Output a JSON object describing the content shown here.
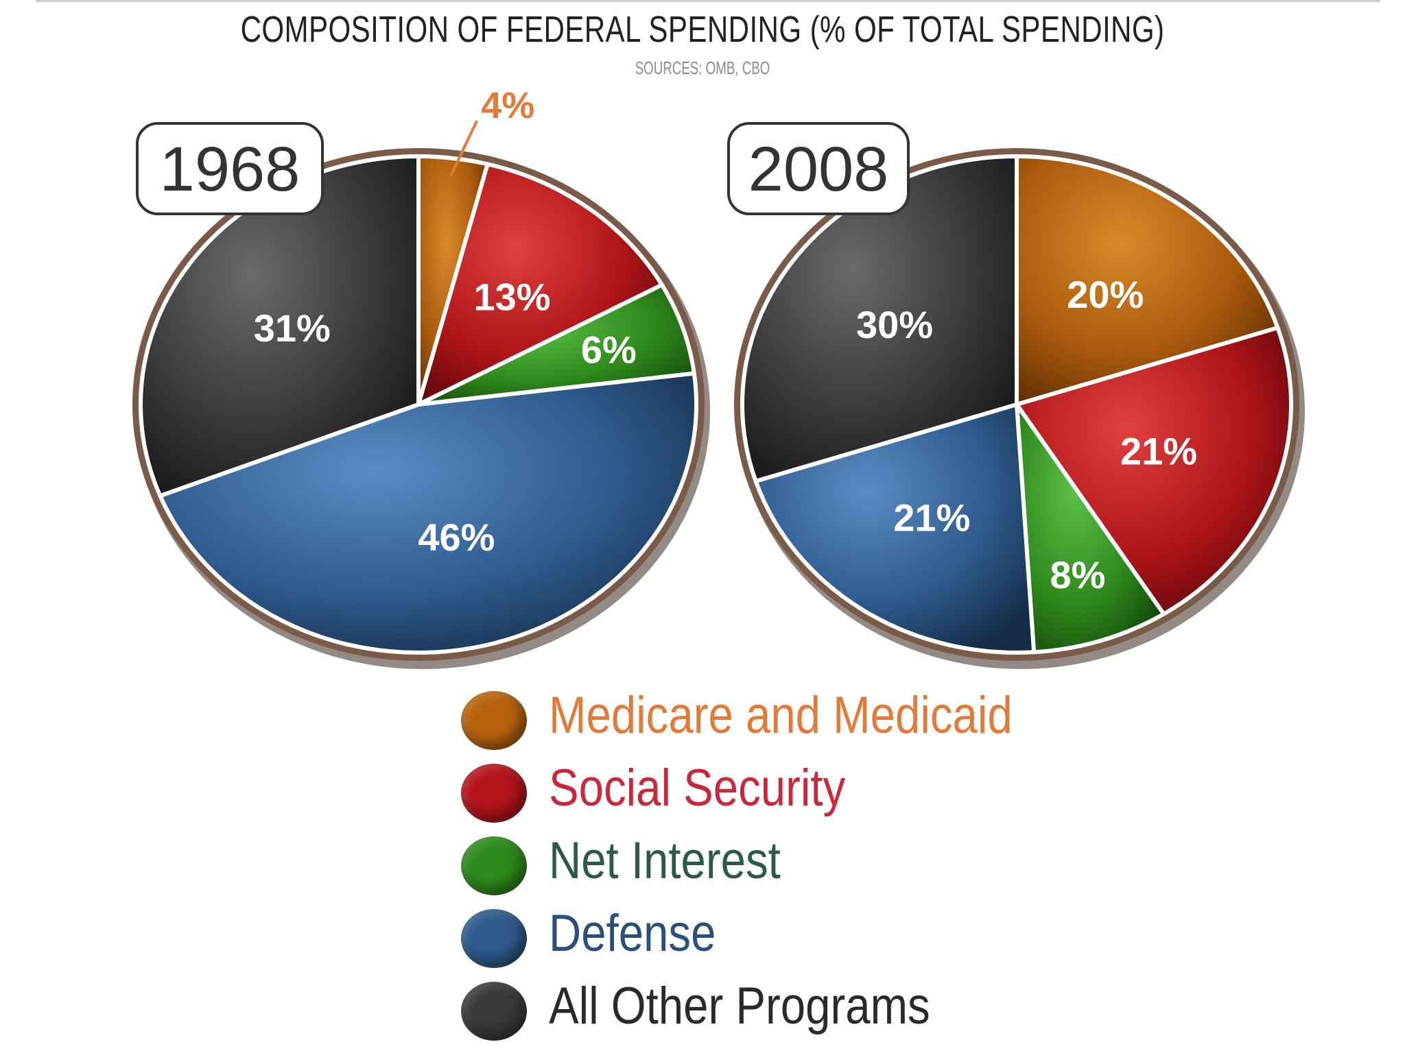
{
  "chart_data": [
    {
      "type": "pie",
      "year_label": "1968",
      "slices": [
        {
          "category": "Medicare and Medicaid",
          "value": 4,
          "label": "4%"
        },
        {
          "category": "Social Security",
          "value": 13,
          "label": "13%"
        },
        {
          "category": "Net Interest",
          "value": 6,
          "label": "6%"
        },
        {
          "category": "Defense",
          "value": 46,
          "label": "46%"
        },
        {
          "category": "All Other Programs",
          "value": 31,
          "label": "31%"
        }
      ]
    },
    {
      "type": "pie",
      "year_label": "2008",
      "slices": [
        {
          "category": "Medicare and Medicaid",
          "value": 20,
          "label": "20%"
        },
        {
          "category": "Social Security",
          "value": 21,
          "label": "21%"
        },
        {
          "category": "Net Interest",
          "value": 8,
          "label": "8%"
        },
        {
          "category": "Defense",
          "value": 21,
          "label": "21%"
        },
        {
          "category": "All Other Programs",
          "value": 30,
          "label": "30%"
        }
      ]
    }
  ],
  "title": "COMPOSITION OF FEDERAL SPENDING (% OF TOTAL SPENDING)",
  "subtitle": "SOURCES: OMB, CBO",
  "legend": [
    {
      "label": "Medicare and Medicaid",
      "color": "#b8620c",
      "text_color": "#e07b3a"
    },
    {
      "label": "Social Security",
      "color": "#b3141c",
      "text_color": "#c8283a"
    },
    {
      "label": "Net Interest",
      "color": "#2e8a1c",
      "text_color": "#2c5a4a"
    },
    {
      "label": "Defense",
      "color": "#2e5a8c",
      "text_color": "#2a4f7a"
    },
    {
      "label": "All Other Programs",
      "color": "#3a3a3a",
      "text_color": "#2a2a2a"
    }
  ],
  "small_slice_label_color": "#e07b3a"
}
